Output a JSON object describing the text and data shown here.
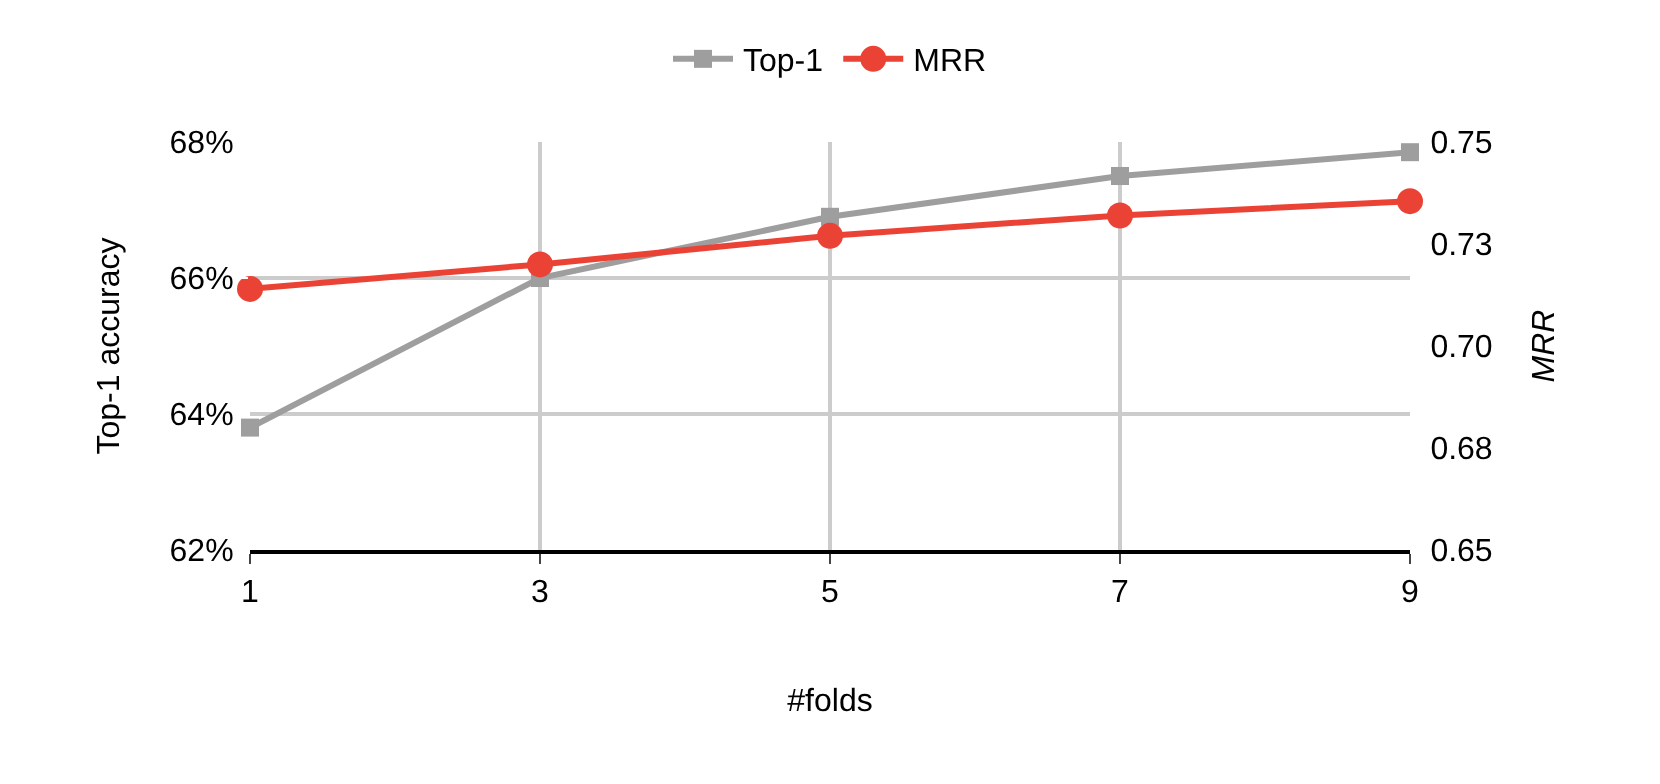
{
  "chart_data": {
    "type": "line",
    "xlabel": "#folds",
    "ylabel": "Top-1 accuracy",
    "y2label": "MRR",
    "x": [
      1,
      3,
      5,
      7,
      9
    ],
    "xlim": [
      1,
      9
    ],
    "xticks": [
      1,
      3,
      5,
      7,
      9
    ],
    "ylim": [
      62,
      68
    ],
    "yticks": [
      {
        "value": 62,
        "label": "62%"
      },
      {
        "value": 64,
        "label": "64%"
      },
      {
        "value": 66,
        "label": "66%"
      },
      {
        "value": 68,
        "label": "68%"
      }
    ],
    "y2lim": [
      0.65,
      0.75
    ],
    "y2ticks": [
      {
        "value": 0.65,
        "label": "0.65"
      },
      {
        "value": 0.675,
        "label": "0.68"
      },
      {
        "value": 0.7,
        "label": "0.70"
      },
      {
        "value": 0.725,
        "label": "0.73"
      },
      {
        "value": 0.75,
        "label": "0.75"
      }
    ],
    "series": [
      {
        "name": "Top-1",
        "color": "#9e9e9e",
        "marker": "square",
        "values": [
          63.8,
          66.0,
          66.9,
          67.5,
          67.85
        ]
      },
      {
        "name": "MRR",
        "color": "#ea4335",
        "marker": "circle",
        "axis": "y2",
        "values": [
          0.714,
          0.72,
          0.727,
          0.732,
          0.7355
        ]
      }
    ],
    "grid": true,
    "legend": "top",
    "line_style": "solid"
  }
}
